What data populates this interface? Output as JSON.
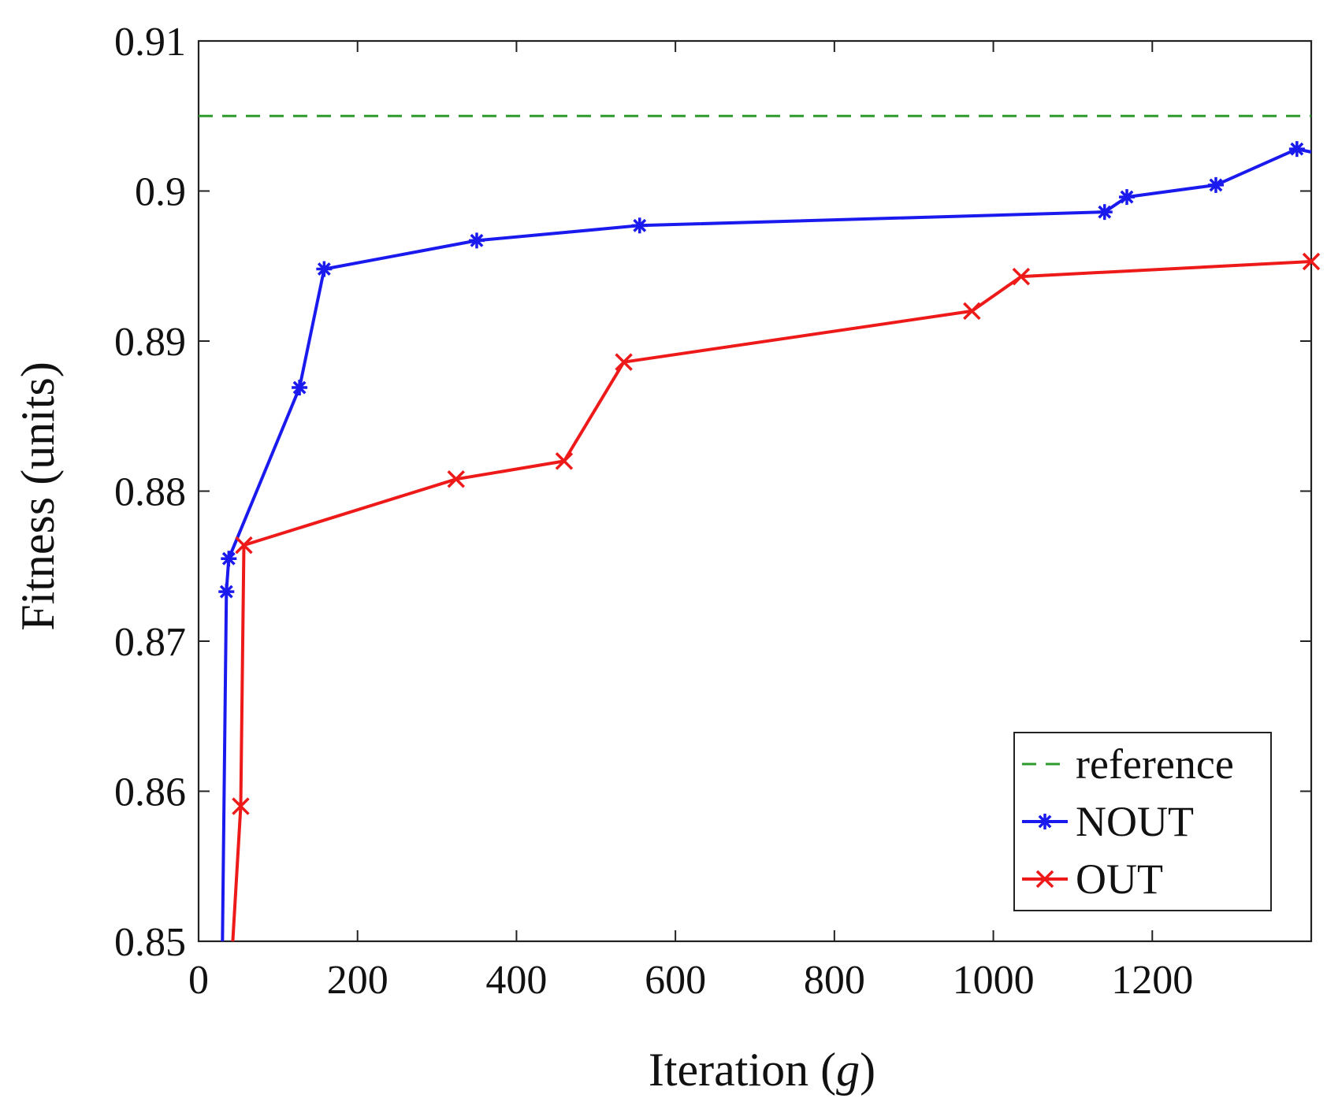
{
  "chart_data": {
    "type": "line",
    "title": "",
    "xlabel_prefix": "Iteration (",
    "xlabel_var": "g",
    "xlabel_suffix": ")",
    "ylabel": "Fitness (units)",
    "xlim": [
      0,
      1400
    ],
    "ylim": [
      0.85,
      0.91
    ],
    "xticks": [
      0,
      200,
      400,
      600,
      800,
      1000,
      1200
    ],
    "xtick_labels": [
      "0",
      "200",
      "400",
      "600",
      "800",
      "1000",
      "1200"
    ],
    "yticks": [
      0.85,
      0.86,
      0.87,
      0.88,
      0.89,
      0.9,
      0.91
    ],
    "ytick_labels": [
      "0.85",
      "0.86",
      "0.87",
      "0.88",
      "0.89",
      "0.9",
      "0.91"
    ],
    "grid": false,
    "legend_position": "bottom-right",
    "series": [
      {
        "name": "reference",
        "style": "dashed",
        "marker": "none",
        "color": "#2e9a2e",
        "x": [
          0,
          1400
        ],
        "y": [
          0.905,
          0.905
        ]
      },
      {
        "name": "NOUT",
        "style": "solid",
        "marker": "asterisk",
        "color": "#1a1aee",
        "line_start": {
          "x": 30,
          "y": 0.85
        },
        "x": [
          35,
          38,
          127,
          158,
          350,
          555,
          1140,
          1168,
          1280,
          1382
        ],
        "y": [
          0.8733,
          0.8755,
          0.8869,
          0.8948,
          0.8967,
          0.8977,
          0.8986,
          0.8996,
          0.9004,
          0.9028
        ],
        "line_end": {
          "x": 1400,
          "y": 0.9026
        }
      },
      {
        "name": "OUT",
        "style": "solid",
        "marker": "x",
        "color": "#ee1a1a",
        "line_start": {
          "x": 43,
          "y": 0.85
        },
        "x": [
          53,
          57,
          324,
          460,
          535,
          973,
          1035,
          1400
        ],
        "y": [
          0.859,
          0.8764,
          0.8808,
          0.882,
          0.8886,
          0.892,
          0.8943,
          0.8953
        ]
      }
    ]
  }
}
